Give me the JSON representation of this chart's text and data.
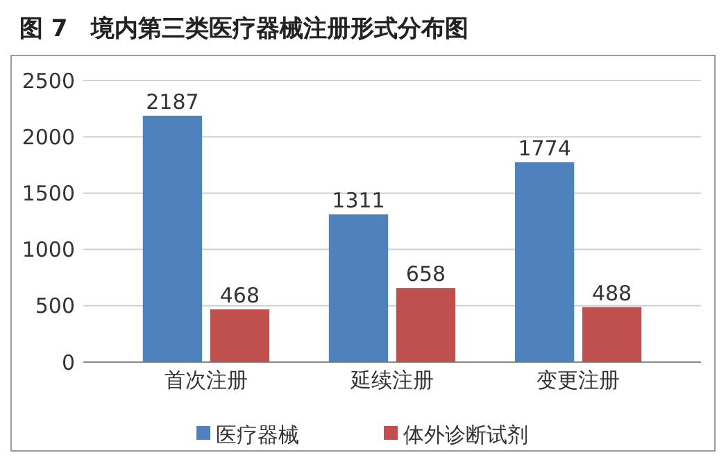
{
  "chart_data": {
    "type": "bar",
    "title": "图 7　境内第三类医疗器械注册形式分布图",
    "categories": [
      "首次注册",
      "延续注册",
      "变更注册"
    ],
    "series": [
      {
        "name": "医疗器械",
        "color": "#4f81bd",
        "values": [
          2187,
          1311,
          1774
        ]
      },
      {
        "name": "体外诊断试剂",
        "color": "#c0504d",
        "values": [
          468,
          658,
          488
        ]
      }
    ],
    "ylim": [
      0,
      2500
    ],
    "yticks": [
      0,
      500,
      1000,
      1500,
      2000,
      2500
    ],
    "grid": "y",
    "legend": "bottom",
    "data_labels": true
  }
}
